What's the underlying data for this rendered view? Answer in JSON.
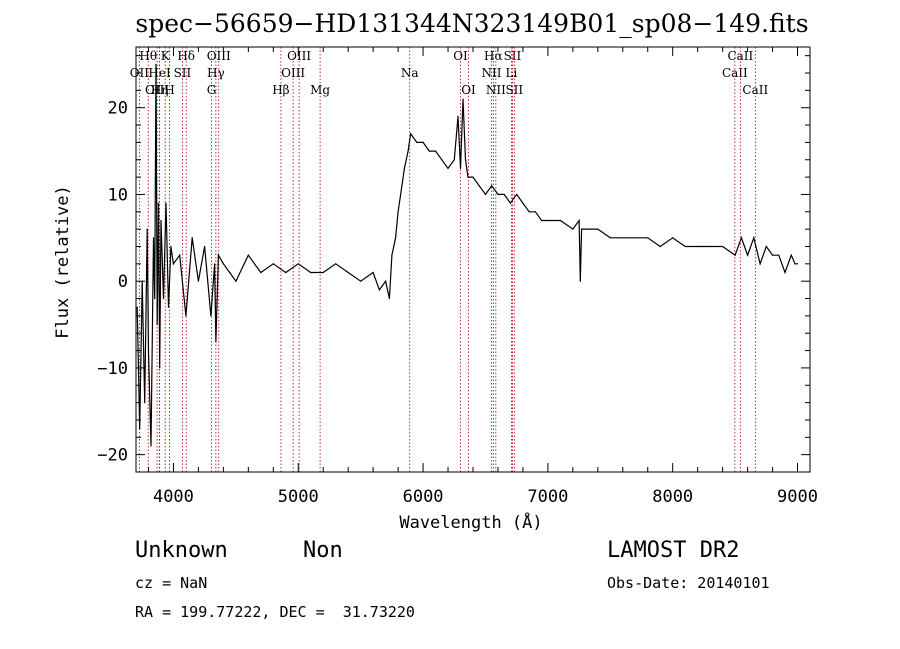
{
  "chart_data": {
    "type": "line",
    "title": "spec−56659−HD131344N323149B01_sp08−149.fits",
    "xlabel": "Wavelength (Å)",
    "ylabel": "Flux (relative)",
    "xlim": [
      3700,
      9100
    ],
    "ylim": [
      -22,
      27
    ],
    "xticks": [
      4000,
      5000,
      6000,
      7000,
      8000,
      9000
    ],
    "yticks": [
      -20,
      -10,
      0,
      10,
      20
    ],
    "ytick_labels": [
      "−20",
      "−10",
      "0",
      "10",
      "20"
    ],
    "grid": false,
    "series": [
      {
        "x": [
          3710,
          3730,
          3750,
          3770,
          3790,
          3800,
          3820,
          3840,
          3850,
          3860,
          3870,
          3880,
          3890,
          3900,
          3920,
          3940,
          3960,
          3980,
          4000,
          4050,
          4100,
          4150,
          4200,
          4250,
          4300,
          4330,
          4340,
          4360,
          4400,
          4450,
          4500,
          4600,
          4700,
          4800,
          4900,
          5000,
          5100,
          5200,
          5300,
          5400,
          5500,
          5600,
          5650,
          5700,
          5730,
          5750,
          5780,
          5800,
          5830,
          5850,
          5880,
          5900,
          5950,
          6000,
          6050,
          6100,
          6150,
          6200,
          6250,
          6280,
          6300,
          6320,
          6340,
          6360,
          6400,
          6450,
          6500,
          6550,
          6600,
          6650,
          6700,
          6750,
          6800,
          6850,
          6900,
          6950,
          7000,
          7100,
          7200,
          7250,
          7260,
          7270,
          7300,
          7400,
          7500,
          7600,
          7700,
          7800,
          7900,
          8000,
          8100,
          8200,
          8300,
          8400,
          8500,
          8550,
          8600,
          8650,
          8700,
          8750,
          8800,
          8850,
          8900,
          8950,
          8980,
          9000
        ],
        "y": [
          -3,
          -17,
          0,
          -14,
          6,
          -8,
          -19,
          5,
          -2,
          25,
          -5,
          9,
          -10,
          7,
          -2,
          9,
          -3,
          4,
          2,
          3,
          -4,
          5,
          0,
          4,
          -4,
          2,
          -7,
          3,
          2,
          1,
          0,
          3,
          1,
          2,
          1,
          2,
          1,
          1,
          2,
          1,
          0,
          1,
          -1,
          0,
          -2,
          3,
          5,
          8,
          11,
          13,
          15,
          17,
          16,
          16,
          15,
          15,
          14,
          13,
          14,
          19,
          13,
          21,
          14,
          12,
          12,
          11,
          10,
          11,
          10,
          10,
          9,
          10,
          9,
          8,
          8,
          7,
          7,
          7,
          6,
          7,
          0,
          6,
          6,
          6,
          5,
          5,
          5,
          5,
          4,
          5,
          4,
          4,
          4,
          4,
          3,
          5,
          3,
          5,
          2,
          4,
          3,
          3,
          1,
          3,
          2,
          2
        ]
      }
    ],
    "spectral_lines": [
      {
        "label": "OII",
        "wavelength": 3727,
        "row": 1
      },
      {
        "label": "Hθ",
        "wavelength": 3798,
        "row": 0
      },
      {
        "label": "OIII",
        "wavelength": 3869,
        "row": 2
      },
      {
        "label": "HeI",
        "wavelength": 3889,
        "row": 1
      },
      {
        "label": "Hη",
        "wavelength": 3889,
        "row": 2
      },
      {
        "label": "K",
        "wavelength": 3934,
        "row": 0
      },
      {
        "label": "SII",
        "wavelength": 4072,
        "row": 1
      },
      {
        "label": "H",
        "wavelength": 3969,
        "row": 2
      },
      {
        "label": "Hδ",
        "wavelength": 4102,
        "row": 0
      },
      {
        "label": "G",
        "wavelength": 4305,
        "row": 2
      },
      {
        "label": "Hγ",
        "wavelength": 4340,
        "row": 1
      },
      {
        "label": "OIII",
        "wavelength": 4363,
        "row": 0
      },
      {
        "label": "Hβ",
        "wavelength": 4861,
        "row": 2
      },
      {
        "label": "OIII",
        "wavelength": 4959,
        "row": 1
      },
      {
        "label": "OIII",
        "wavelength": 5007,
        "row": 0
      },
      {
        "label": "Mg",
        "wavelength": 5175,
        "row": 2
      },
      {
        "label": "Na",
        "wavelength": 5893,
        "row": 1
      },
      {
        "label": "OI",
        "wavelength": 6300,
        "row": 0
      },
      {
        "label": "OI",
        "wavelength": 6364,
        "row": 2
      },
      {
        "label": "NII",
        "wavelength": 6548,
        "row": 1
      },
      {
        "label": "Hα",
        "wavelength": 6563,
        "row": 0
      },
      {
        "label": "NII",
        "wavelength": 6583,
        "row": 2
      },
      {
        "label": "SII",
        "wavelength": 6716,
        "row": 0
      },
      {
        "label": "Li",
        "wavelength": 6708,
        "row": 1
      },
      {
        "label": "SII",
        "wavelength": 6731,
        "row": 2
      },
      {
        "label": "CaII",
        "wavelength": 8498,
        "row": 1
      },
      {
        "label": "CaII",
        "wavelength": 8542,
        "row": 0
      },
      {
        "label": "CaII",
        "wavelength": 8662,
        "row": 2
      }
    ]
  },
  "info": {
    "class": "Unknown",
    "subclass": "Non",
    "cz": "cz = NaN",
    "radec": "RA = 199.77222, DEC =  31.73220",
    "survey": "LAMOST DR2",
    "obsdate": "Obs-Date: 20140101"
  }
}
